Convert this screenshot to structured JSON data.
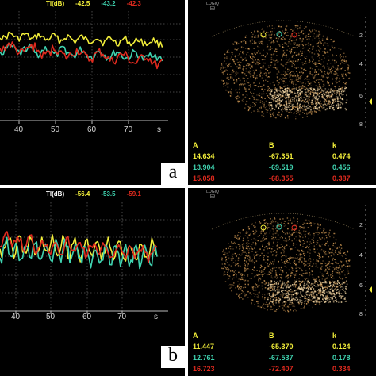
{
  "panel_top_chart": {
    "header_label": "TI(dB)",
    "values": [
      "-42.5",
      "-43.2",
      "-42.3"
    ],
    "x_ticks": [
      "40",
      "50",
      "60",
      "70",
      "s"
    ],
    "letter": "a"
  },
  "panel_bottom_chart": {
    "header_label": "TI(dB)",
    "values": [
      "-56.4",
      "-53.5",
      "-59.1"
    ],
    "x_ticks": [
      "40",
      "50",
      "60",
      "70",
      "s"
    ],
    "letter": "b"
  },
  "ultrasound_top": {
    "caption_line1": "LOGIQ",
    "caption_line2": "E9",
    "depth_labels": [
      "2",
      "4",
      "6",
      "8"
    ],
    "table": {
      "headers": [
        "A",
        "B",
        "k"
      ],
      "rows": [
        [
          "14.634",
          "-67.351",
          "0.474"
        ],
        [
          "13.904",
          "-69.519",
          "0.456"
        ],
        [
          "15.058",
          "-68.355",
          "0.387"
        ]
      ]
    }
  },
  "ultrasound_bottom": {
    "caption_line1": "LOGIQ",
    "caption_line2": "E9",
    "depth_labels": [
      "2",
      "4",
      "6",
      "8"
    ],
    "table": {
      "headers": [
        "A",
        "B",
        "k"
      ],
      "rows": [
        [
          "11.447",
          "-65.370",
          "0.124"
        ],
        [
          "12.761",
          "-67.537",
          "0.178"
        ],
        [
          "16.723",
          "-72.407",
          "0.334"
        ]
      ]
    }
  },
  "colors": {
    "series_yellow": "#f2ee3a",
    "series_cyan": "#3fd3b0",
    "series_red": "#e02a1e",
    "header_white": "#ffffff",
    "speckle": "#e0a45a"
  }
}
